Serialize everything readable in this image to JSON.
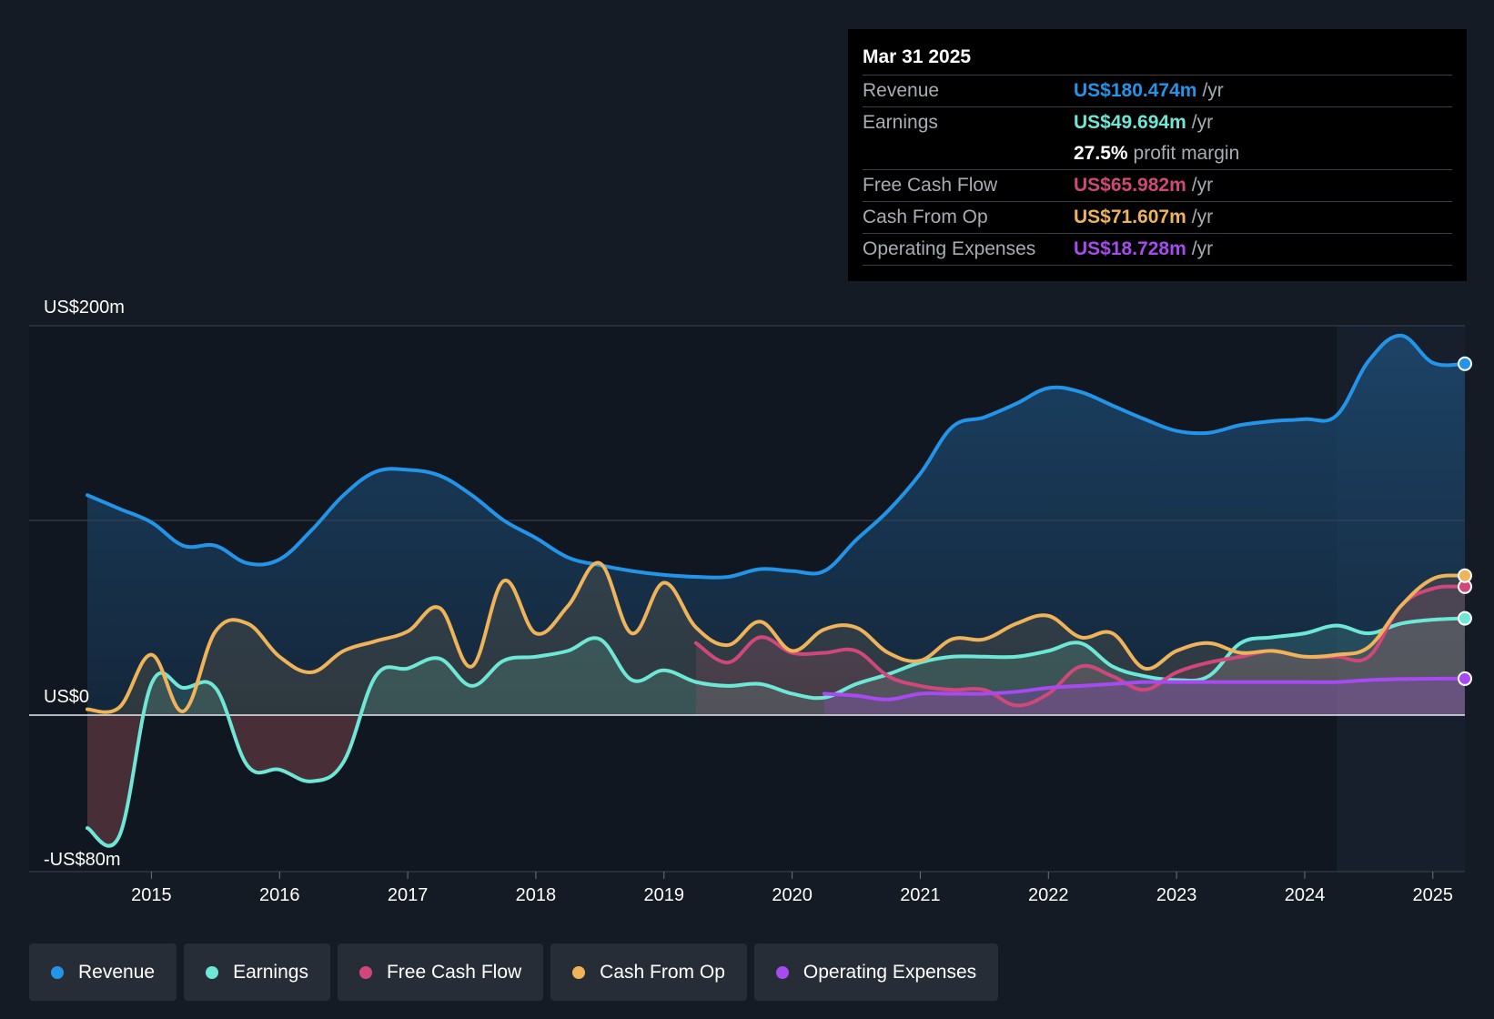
{
  "tooltip": {
    "date": "Mar 31 2025",
    "rows": [
      {
        "label": "Revenue",
        "value": "US$180.474m",
        "unit": "/yr",
        "color": "#2394e8"
      },
      {
        "label": "Earnings",
        "value": "US$49.694m",
        "unit": "/yr",
        "color": "#6ee7d6"
      },
      {
        "label": "",
        "value": "27.5%",
        "unit": "profit margin",
        "color": "#ffffff"
      },
      {
        "label": "Free Cash Flow",
        "value": "US$65.982m",
        "unit": "/yr",
        "color": "#d0487a"
      },
      {
        "label": "Cash From Op",
        "value": "US$71.607m",
        "unit": "/yr",
        "color": "#efb35a"
      },
      {
        "label": "Operating Expenses",
        "value": "US$18.728m",
        "unit": "/yr",
        "color": "#a74af0"
      }
    ]
  },
  "legend": [
    {
      "label": "Revenue",
      "color": "#2394e8"
    },
    {
      "label": "Earnings",
      "color": "#6ee7d6"
    },
    {
      "label": "Free Cash Flow",
      "color": "#d0487a"
    },
    {
      "label": "Cash From Op",
      "color": "#efb35a"
    },
    {
      "label": "Operating Expenses",
      "color": "#a74af0"
    }
  ],
  "chart_data": {
    "type": "line",
    "title": "",
    "xlabel": "",
    "ylabel": "",
    "ylim": [
      -80,
      200
    ],
    "xlim": [
      2014.5,
      2025.25
    ],
    "y_axis_labels": [
      {
        "label": "US$200m",
        "value": 200
      },
      {
        "label": "US$0",
        "value": 0
      },
      {
        "label": "-US$80m",
        "value": -80
      }
    ],
    "x_ticks": [
      {
        "label": "2015",
        "value": 2015
      },
      {
        "label": "2016",
        "value": 2016
      },
      {
        "label": "2017",
        "value": 2017
      },
      {
        "label": "2018",
        "value": 2018
      },
      {
        "label": "2019",
        "value": 2019
      },
      {
        "label": "2020",
        "value": 2020
      },
      {
        "label": "2021",
        "value": 2021
      },
      {
        "label": "2022",
        "value": 2022
      },
      {
        "label": "2023",
        "value": 2023
      },
      {
        "label": "2024",
        "value": 2024
      },
      {
        "label": "2025",
        "value": 2025
      }
    ],
    "forecast_start": 2024.25,
    "series": [
      {
        "name": "Revenue",
        "color": "#2394e8",
        "x": [
          2014.5,
          2014.75,
          2015.0,
          2015.25,
          2015.5,
          2015.75,
          2016.0,
          2016.25,
          2016.5,
          2016.75,
          2017.0,
          2017.25,
          2017.5,
          2017.75,
          2018.0,
          2018.25,
          2018.5,
          2018.75,
          2019.0,
          2019.25,
          2019.5,
          2019.75,
          2020.0,
          2020.25,
          2020.5,
          2020.75,
          2021.0,
          2021.25,
          2021.5,
          2021.75,
          2022.0,
          2022.25,
          2022.5,
          2022.75,
          2023.0,
          2023.25,
          2023.5,
          2023.75,
          2024.0,
          2024.25,
          2024.5,
          2024.75,
          2025.0,
          2025.25
        ],
        "values": [
          113,
          106,
          99,
          87,
          87,
          78,
          80,
          95,
          113,
          125,
          126,
          123,
          113,
          100,
          91,
          81,
          77,
          74,
          72,
          71,
          71,
          75,
          74,
          74,
          90,
          105,
          124,
          148,
          153,
          160,
          168,
          166,
          159,
          152,
          146,
          145,
          149,
          151,
          152,
          154,
          182,
          195,
          181,
          180.474
        ]
      },
      {
        "name": "Earnings",
        "color": "#6ee7d6",
        "x": [
          2014.5,
          2014.75,
          2015.0,
          2015.25,
          2015.5,
          2015.75,
          2016.0,
          2016.25,
          2016.5,
          2016.75,
          2017.0,
          2017.25,
          2017.5,
          2017.75,
          2018.0,
          2018.25,
          2018.5,
          2018.75,
          2019.0,
          2019.25,
          2019.5,
          2019.75,
          2020.0,
          2020.25,
          2020.5,
          2020.75,
          2021.0,
          2021.25,
          2021.5,
          2021.75,
          2022.0,
          2022.25,
          2022.5,
          2022.75,
          2023.0,
          2023.25,
          2023.5,
          2023.75,
          2024.0,
          2024.25,
          2024.5,
          2024.75,
          2025.0,
          2025.25
        ],
        "values": [
          -58,
          -62,
          16,
          14,
          14,
          -26,
          -28,
          -34,
          -24,
          20,
          24,
          29,
          15,
          28,
          30,
          33,
          39,
          18,
          23,
          17,
          15,
          16,
          11,
          9,
          16,
          21,
          27,
          30,
          30,
          30,
          33,
          37,
          25,
          20,
          18,
          20,
          37,
          40,
          42,
          46,
          42,
          47,
          49,
          49.694
        ]
      },
      {
        "name": "Free Cash Flow",
        "color": "#d0487a",
        "x": [
          2019.25,
          2019.5,
          2019.75,
          2020.0,
          2020.25,
          2020.5,
          2020.75,
          2021.0,
          2021.25,
          2021.5,
          2021.75,
          2022.0,
          2022.25,
          2022.5,
          2022.75,
          2023.0,
          2023.25,
          2023.5,
          2023.75,
          2024.0,
          2024.25,
          2024.5,
          2024.75,
          2025.0,
          2025.25
        ],
        "values": [
          37,
          27,
          40,
          32,
          32,
          33,
          20,
          15,
          13,
          13,
          5,
          11,
          25,
          20,
          13,
          22,
          27,
          30,
          33,
          30,
          30,
          30,
          56,
          65,
          65.982
        ]
      },
      {
        "name": "Cash From Op",
        "color": "#efb35a",
        "x": [
          2014.5,
          2014.75,
          2015.0,
          2015.25,
          2015.5,
          2015.75,
          2016.0,
          2016.25,
          2016.5,
          2016.75,
          2017.0,
          2017.25,
          2017.5,
          2017.75,
          2018.0,
          2018.25,
          2018.5,
          2018.75,
          2019.0,
          2019.25,
          2019.5,
          2019.75,
          2020.0,
          2020.25,
          2020.5,
          2020.75,
          2021.0,
          2021.25,
          2021.5,
          2021.75,
          2022.0,
          2022.25,
          2022.5,
          2022.75,
          2023.0,
          2023.25,
          2023.5,
          2023.75,
          2024.0,
          2024.25,
          2024.5,
          2024.75,
          2025.0,
          2025.25
        ],
        "values": [
          3,
          4,
          31,
          2,
          43,
          47,
          30,
          22,
          33,
          38,
          43,
          55,
          25,
          69,
          42,
          56,
          78,
          42,
          68,
          45,
          36,
          48,
          33,
          44,
          45,
          32,
          28,
          39,
          39,
          47,
          51,
          40,
          42,
          24,
          33,
          37,
          32,
          33,
          30,
          31,
          35,
          56,
          70,
          71.607
        ]
      },
      {
        "name": "Operating Expenses",
        "color": "#a74af0",
        "x": [
          2020.25,
          2020.5,
          2020.75,
          2021.0,
          2021.25,
          2021.5,
          2021.75,
          2022.0,
          2022.25,
          2022.5,
          2022.75,
          2023.0,
          2023.25,
          2023.5,
          2023.75,
          2024.0,
          2024.25,
          2024.5,
          2024.75,
          2025.0,
          2025.25
        ],
        "values": [
          11,
          10,
          8,
          11,
          11,
          11,
          12,
          14,
          15,
          16,
          17,
          17,
          17,
          17,
          17,
          17,
          17,
          18,
          18.5,
          18.7,
          18.728
        ]
      }
    ]
  }
}
